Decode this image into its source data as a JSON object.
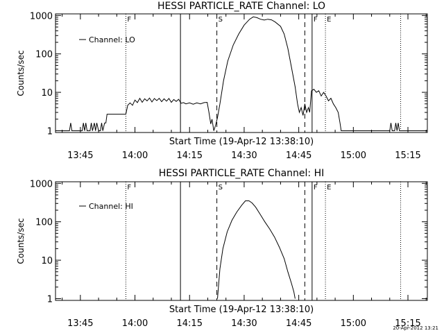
{
  "footer": {
    "timestamp": "20-Apr-2012 13:21"
  },
  "chart_data": [
    {
      "type": "line",
      "title": "HESSI PARTICLE_RATE Channel: LO",
      "xlabel": "Start Time (19-Apr-12 13:38:10)",
      "ylabel": "Counts/sec",
      "yscale": "log",
      "xlim": [
        "13:38:10",
        "15:20:20"
      ],
      "ylim": [
        0.9,
        1100
      ],
      "x_ticks": [
        "13:45",
        "14:00",
        "14:15",
        "14:30",
        "14:45",
        "15:00",
        "15:15"
      ],
      "y_ticks": [
        "1",
        "10",
        "100",
        "1000"
      ],
      "legend": {
        "position": "top-left",
        "label": "Channel: LO"
      },
      "markers": [
        {
          "time": "13:57:30",
          "style": "dotted",
          "label": "F"
        },
        {
          "time": "14:12:30",
          "style": "solid",
          "label": ""
        },
        {
          "time": "14:22:30",
          "style": "dashed",
          "label": "S"
        },
        {
          "time": "14:46:40",
          "style": "dashed",
          "label": ""
        },
        {
          "time": "14:48:40",
          "style": "solid",
          "label": "F"
        },
        {
          "time": "14:52:20",
          "style": "dotted",
          "label": "E"
        },
        {
          "time": "15:13:00",
          "style": "dotted",
          "label": ""
        }
      ],
      "series": [
        {
          "name": "Channel: LO",
          "points": [
            [
              "13:38:10",
              1
            ],
            [
              "13:42:00",
              1
            ],
            [
              "13:42:20",
              1.6
            ],
            [
              "13:42:40",
              1
            ],
            [
              "13:45:30",
              1
            ],
            [
              "13:45:50",
              1.6
            ],
            [
              "13:46:10",
              1
            ],
            [
              "13:46:30",
              1.6
            ],
            [
              "13:46:50",
              1
            ],
            [
              "13:47:40",
              1
            ],
            [
              "13:48:00",
              1.6
            ],
            [
              "13:48:20",
              1
            ],
            [
              "13:48:50",
              1.6
            ],
            [
              "13:49:10",
              1
            ],
            [
              "13:49:30",
              1.6
            ],
            [
              "13:50:00",
              1
            ],
            [
              "13:50:30",
              1
            ],
            [
              "13:50:50",
              1.6
            ],
            [
              "13:51:10",
              1
            ],
            [
              "13:51:40",
              1.6
            ],
            [
              "13:52:00",
              1.6
            ],
            [
              "13:52:20",
              2.7
            ],
            [
              "13:57:30",
              2.7
            ],
            [
              "13:58:00",
              4.6
            ],
            [
              "13:58:40",
              5.3
            ],
            [
              "13:59:20",
              4.6
            ],
            [
              "14:00:00",
              6.3
            ],
            [
              "14:00:40",
              5.4
            ],
            [
              "14:01:20",
              7.0
            ],
            [
              "14:02:00",
              5.5
            ],
            [
              "14:02:40",
              6.8
            ],
            [
              "14:03:20",
              6.0
            ],
            [
              "14:04:00",
              7.1
            ],
            [
              "14:04:40",
              5.6
            ],
            [
              "14:05:20",
              6.9
            ],
            [
              "14:06:00",
              6.1
            ],
            [
              "14:06:40",
              7.0
            ],
            [
              "14:07:20",
              5.7
            ],
            [
              "14:08:00",
              6.8
            ],
            [
              "14:08:40",
              5.9
            ],
            [
              "14:09:20",
              6.9
            ],
            [
              "14:10:00",
              5.5
            ],
            [
              "14:10:40",
              6.5
            ],
            [
              "14:11:20",
              5.8
            ],
            [
              "14:12:00",
              6.6
            ],
            [
              "14:12:40",
              5.2
            ],
            [
              "14:13:20",
              5.4
            ],
            [
              "14:14:00",
              5.0
            ],
            [
              "14:15:00",
              5.3
            ],
            [
              "14:16:00",
              4.9
            ],
            [
              "14:17:00",
              5.3
            ],
            [
              "14:18:00",
              5.0
            ],
            [
              "14:19:00",
              5.4
            ],
            [
              "14:19:50",
              5.5
            ],
            [
              "14:20:20",
              3.0
            ],
            [
              "14:20:50",
              1.5
            ],
            [
              "14:21:10",
              2.0
            ],
            [
              "14:21:40",
              1.0
            ],
            [
              "14:22:10",
              1.4
            ],
            [
              "14:22:40",
              2.2
            ],
            [
              "14:23:20",
              5
            ],
            [
              "14:24:20",
              20
            ],
            [
              "14:25:30",
              65
            ],
            [
              "14:27:00",
              170
            ],
            [
              "14:28:30",
              330
            ],
            [
              "14:30:00",
              560
            ],
            [
              "14:31:30",
              800
            ],
            [
              "14:32:30",
              920
            ],
            [
              "14:33:30",
              880
            ],
            [
              "14:34:30",
              800
            ],
            [
              "14:35:30",
              760
            ],
            [
              "14:36:30",
              800
            ],
            [
              "14:37:30",
              770
            ],
            [
              "14:38:30",
              680
            ],
            [
              "14:40:00",
              520
            ],
            [
              "14:41:00",
              330
            ],
            [
              "14:42:00",
              140
            ],
            [
              "14:43:00",
              45
            ],
            [
              "14:44:00",
              14
            ],
            [
              "14:44:40",
              5
            ],
            [
              "14:45:10",
              3
            ],
            [
              "14:45:40",
              4
            ],
            [
              "14:46:10",
              2.5
            ],
            [
              "14:46:40",
              5
            ],
            [
              "14:47:10",
              3
            ],
            [
              "14:47:40",
              4
            ],
            [
              "14:48:00",
              3
            ],
            [
              "14:48:30",
              11
            ],
            [
              "14:49:10",
              12
            ],
            [
              "14:49:50",
              10
            ],
            [
              "14:50:30",
              11
            ],
            [
              "14:51:10",
              8
            ],
            [
              "14:51:50",
              10
            ],
            [
              "14:52:30",
              8
            ],
            [
              "14:53:10",
              6
            ],
            [
              "14:53:50",
              7
            ],
            [
              "14:54:30",
              5
            ],
            [
              "14:55:10",
              4
            ],
            [
              "14:55:50",
              3
            ],
            [
              "14:56:20",
              1.6
            ],
            [
              "14:56:40",
              1
            ],
            [
              "15:10:00",
              1
            ],
            [
              "15:10:20",
              1.6
            ],
            [
              "15:10:40",
              1
            ],
            [
              "15:11:20",
              1
            ],
            [
              "15:11:40",
              1.6
            ],
            [
              "15:12:00",
              1
            ],
            [
              "15:12:20",
              1.6
            ],
            [
              "15:12:40",
              1
            ],
            [
              "15:20:20",
              1
            ]
          ]
        }
      ]
    },
    {
      "type": "line",
      "title": "HESSI PARTICLE_RATE Channel: HI",
      "xlabel": "Start Time (19-Apr-12 13:38:10)",
      "ylabel": "Counts/sec",
      "yscale": "log",
      "xlim": [
        "13:38:10",
        "15:20:20"
      ],
      "ylim": [
        0.9,
        1100
      ],
      "x_ticks": [
        "13:45",
        "14:00",
        "14:15",
        "14:30",
        "14:45",
        "15:00",
        "15:15"
      ],
      "y_ticks": [
        "1",
        "10",
        "100",
        "1000"
      ],
      "legend": {
        "position": "top-left",
        "label": "Channel: HI"
      },
      "markers": [
        {
          "time": "13:57:30",
          "style": "dotted",
          "label": "F"
        },
        {
          "time": "14:12:30",
          "style": "solid",
          "label": ""
        },
        {
          "time": "14:22:30",
          "style": "dashed",
          "label": "S"
        },
        {
          "time": "14:46:40",
          "style": "dashed",
          "label": ""
        },
        {
          "time": "14:48:40",
          "style": "solid",
          "label": "F"
        },
        {
          "time": "14:52:20",
          "style": "dotted",
          "label": "E"
        },
        {
          "time": "15:13:00",
          "style": "dotted",
          "label": ""
        }
      ],
      "series": [
        {
          "name": "Channel: HI",
          "points": [
            [
              "14:22:40",
              1
            ],
            [
              "14:23:20",
              6
            ],
            [
              "14:24:10",
              20
            ],
            [
              "14:25:20",
              55
            ],
            [
              "14:26:40",
              110
            ],
            [
              "14:28:00",
              180
            ],
            [
              "14:29:20",
              270
            ],
            [
              "14:30:20",
              350
            ],
            [
              "14:31:20",
              350
            ],
            [
              "14:32:10",
              310
            ],
            [
              "14:33:10",
              240
            ],
            [
              "14:34:20",
              160
            ],
            [
              "14:35:40",
              100
            ],
            [
              "14:37:00",
              65
            ],
            [
              "14:38:20",
              40
            ],
            [
              "14:39:40",
              22
            ],
            [
              "14:41:00",
              11
            ],
            [
              "14:42:00",
              5
            ],
            [
              "14:43:00",
              2.5
            ],
            [
              "14:43:40",
              1.5
            ],
            [
              "14:44:00",
              1
            ]
          ]
        }
      ]
    }
  ]
}
